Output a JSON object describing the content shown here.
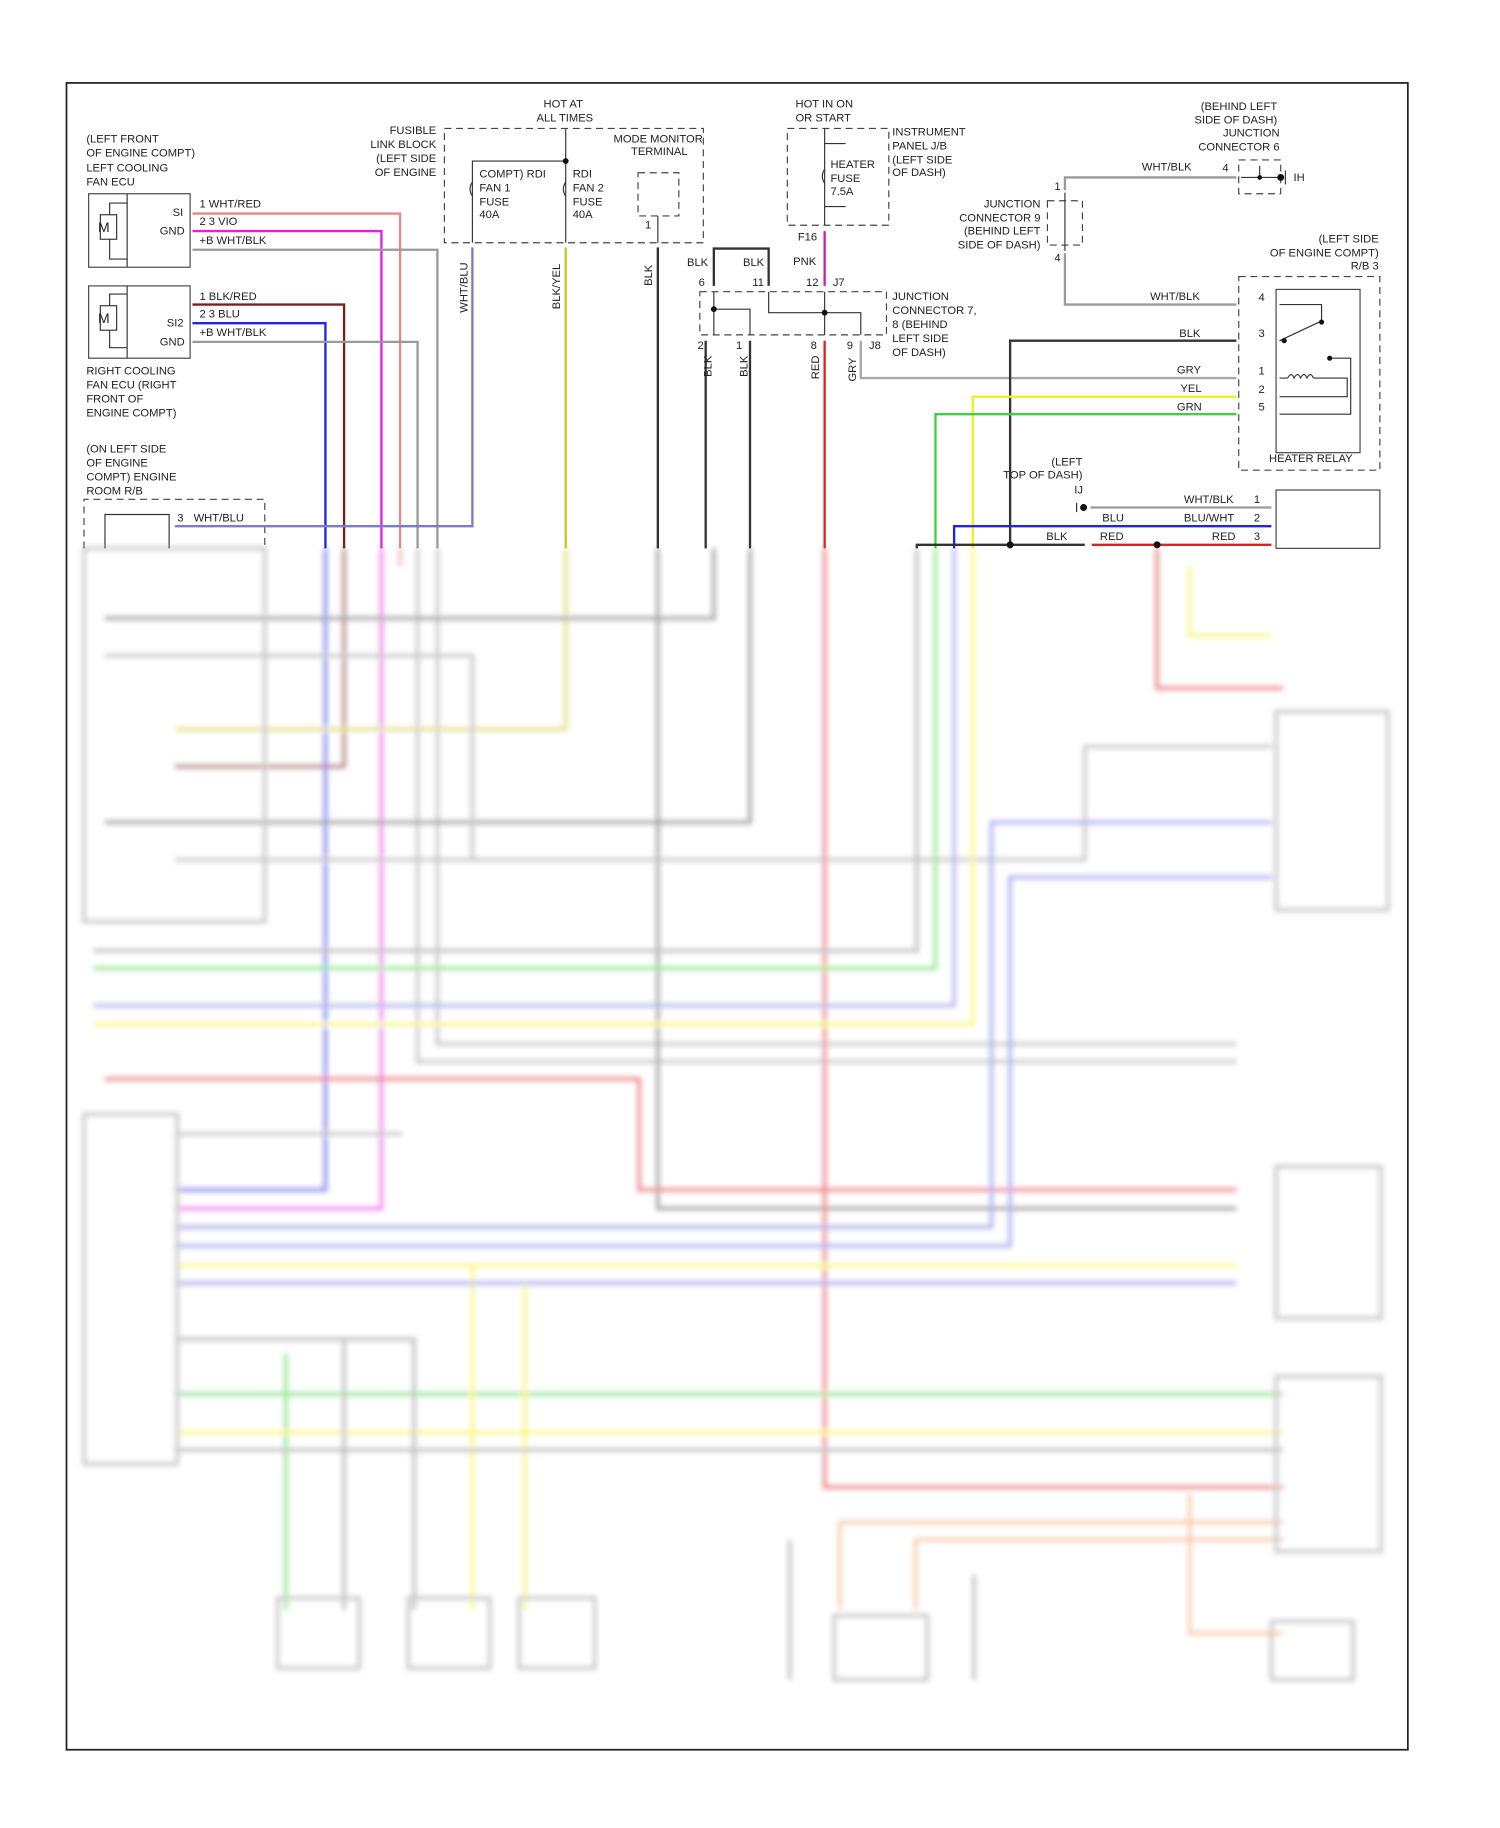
{
  "wire_colors": {
    "wht_red": "#e08a8a",
    "vio": "#e020e0",
    "wht_blk": "#9a9a9a",
    "blk_red": "#7a2020",
    "blu": "#2424e0",
    "wht_blu": "#7a7ad0",
    "blk_yel": "#c8c820",
    "blk": "#333333",
    "pnk": "#d0209a",
    "red": "#e02020",
    "gry": "#a8a8a8",
    "yel": "#f0f020",
    "grn": "#40d040",
    "orange": "#f0a060"
  },
  "power": {
    "hot_at_all_times": [
      "HOT AT",
      "ALL TIMES"
    ],
    "hot_in_on": [
      "HOT IN ON",
      "OR START"
    ]
  },
  "left_fan_ecu": {
    "location": [
      "(LEFT FRONT",
      "OF ENGINE COMPT)",
      "LEFT COOLING",
      "FAN ECU"
    ],
    "motor": "M",
    "si": "SI",
    "gnd": "GND",
    "pins": [
      "1   WHT/RED",
      "2 3 VIO",
      "+B WHT/BLK"
    ]
  },
  "right_fan_ecu": {
    "location": [
      "RIGHT COOLING",
      "FAN ECU (RIGHT",
      "FRONT OF",
      "ENGINE COMPT)"
    ],
    "motor": "M",
    "si": "SI2",
    "gnd": "GND",
    "pins": [
      "1   BLK/RED",
      "2 3 BLU",
      "+B WHT/BLK"
    ]
  },
  "engine_room_rb": {
    "location": [
      "(ON LEFT SIDE",
      "OF ENGINE",
      "COMPT) ENGINE",
      "ROOM R/B"
    ],
    "pin": "3",
    "wire": "WHT/BLU"
  },
  "fusible_link_block": {
    "location": [
      "FUSIBLE",
      "LINK BLOCK",
      "(LEFT SIDE",
      "OF ENGINE"
    ],
    "fuse1": [
      "COMPT) RDI",
      "FAN 1",
      "FUSE",
      "40A"
    ],
    "fuse2": [
      "RDI",
      "FAN 2",
      "FUSE",
      "40A"
    ],
    "wire1": "WHT/BLU",
    "wire2": "BLK/YEL"
  },
  "mode_monitor": {
    "label": [
      "MODE MONITOR",
      "TERMINAL"
    ],
    "pin": "1",
    "wire": "BLK"
  },
  "instrument_panel_jb": {
    "location": [
      "INSTRUMENT",
      "PANEL J/B",
      "(LEFT SIDE",
      "OF DASH)"
    ],
    "fuse": [
      "HEATER",
      "FUSE",
      "7.5A"
    ],
    "connector": "F16",
    "wire": "PNK"
  },
  "junction_connector_7_8": {
    "label": [
      "JUNCTION",
      "CONNECTOR 7,",
      "8 (BEHIND",
      "LEFT SIDE",
      "OF DASH)"
    ],
    "top_pins": [
      "6",
      "11",
      "12"
    ],
    "top_wires": [
      "BLK",
      "BLK"
    ],
    "j7": "J7",
    "j8": "J8",
    "bottom_pins": [
      "2",
      "1",
      "8",
      "9"
    ],
    "bottom_wires": [
      "BLK",
      "BLK",
      "RED",
      "GRY"
    ]
  },
  "junction_connector_9": {
    "label": [
      "JUNCTION",
      "CONNECTOR 9",
      "(BEHIND LEFT",
      "SIDE OF DASH)"
    ],
    "pins": [
      "1",
      "4"
    ]
  },
  "junction_connector_6": {
    "label": [
      "(BEHIND LEFT",
      "SIDE OF DASH)",
      "JUNCTION",
      "CONNECTOR 6"
    ],
    "pin": "4",
    "wire": "WHT/BLK",
    "ground": "IH"
  },
  "heater_relay": {
    "location": [
      "(LEFT SIDE",
      "OF ENGINE COMPT)",
      "R/B 3"
    ],
    "name": "HEATER RELAY",
    "pins": [
      {
        "pin": "4",
        "wire": "WHT/BLK"
      },
      {
        "pin": "3",
        "wire": "BLK"
      },
      {
        "pin": "1",
        "wire": "GRY"
      },
      {
        "pin": "2",
        "wire": "YEL"
      },
      {
        "pin": "5",
        "wire": "GRN"
      }
    ]
  },
  "lower_connector": {
    "ground_location": [
      "(LEFT",
      "TOP OF DASH)"
    ],
    "ground": "IJ",
    "pins": [
      {
        "pin": "1",
        "wire": "WHT/BLK"
      },
      {
        "pin": "2",
        "wire": "BLU/WHT",
        "from": "BLU"
      },
      {
        "pin": "3",
        "wire": "RED",
        "from": "BLK",
        "mid": "RED"
      }
    ]
  }
}
